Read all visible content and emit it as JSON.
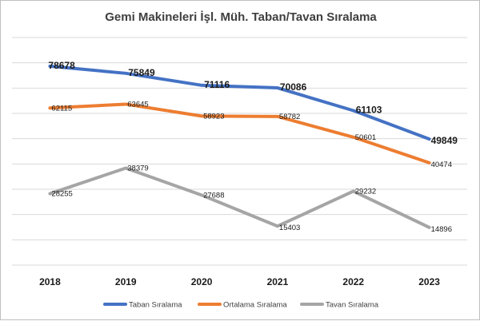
{
  "chart_data": {
    "type": "line",
    "title": "Gemi Makineleri İşl. Müh. Taban/Tavan Sıralama",
    "xlabel": "",
    "ylabel": "",
    "categories": [
      "2018",
      "2019",
      "2020",
      "2021",
      "2022",
      "2023"
    ],
    "ylim": [
      0,
      90000
    ],
    "grid": true,
    "legend_position": "bottom",
    "series": [
      {
        "name": "Taban Sıralama",
        "color": "#4472c4",
        "label_style": "bold",
        "values": [
          78678,
          75849,
          71116,
          70086,
          61103,
          49849
        ]
      },
      {
        "name": "Ortalama Sıralama",
        "color": "#ed7d31",
        "label_style": "small",
        "values": [
          62115,
          63645,
          58923,
          58782,
          50601,
          40474
        ]
      },
      {
        "name": "Tavan Sıralama",
        "color": "#a5a5a5",
        "label_style": "small",
        "values": [
          28255,
          38379,
          27688,
          15403,
          29232,
          14896
        ]
      }
    ]
  }
}
